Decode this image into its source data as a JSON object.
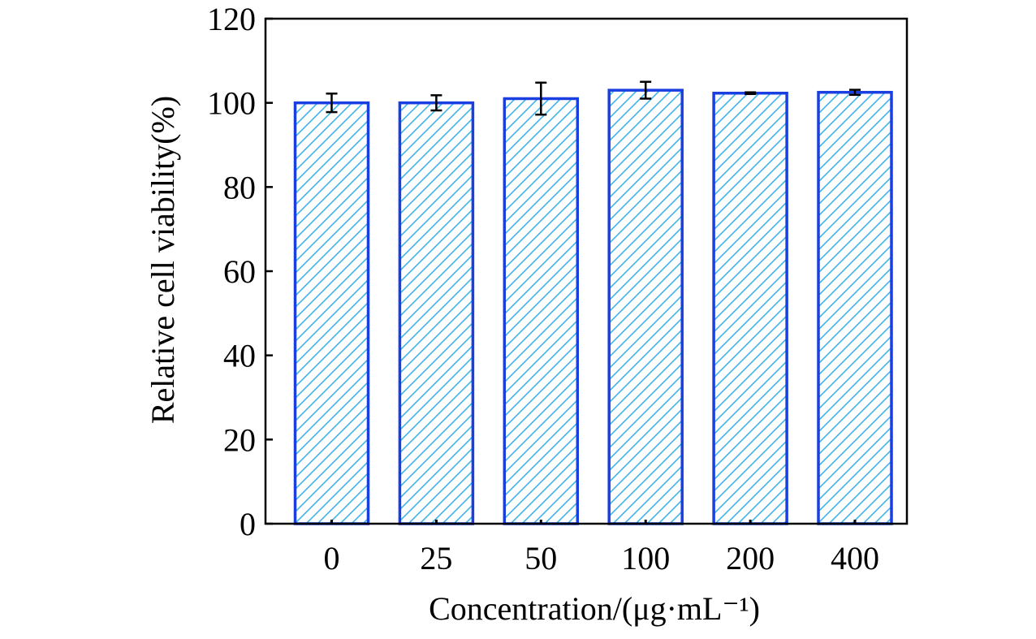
{
  "chart_data": {
    "type": "bar",
    "title": "",
    "xlabel": "Concentration/(μg·mL⁻¹)",
    "ylabel": "Relative cell viability(%)",
    "categories": [
      "0",
      "25",
      "50",
      "100",
      "200",
      "400"
    ],
    "values": [
      100.0,
      100.0,
      101.0,
      103.0,
      102.3,
      102.5
    ],
    "errors": [
      2.2,
      1.8,
      3.8,
      2.0,
      0.2,
      0.6
    ],
    "ylim": [
      0,
      120
    ],
    "yticks": [
      0,
      20,
      40,
      60,
      80,
      100,
      120
    ],
    "grid": false,
    "legend": "none",
    "colors": {
      "bar_edge": "#1a3fe0",
      "hatch": "#3fb4e8",
      "error_bar": "#000000",
      "axis": "#000000"
    }
  }
}
